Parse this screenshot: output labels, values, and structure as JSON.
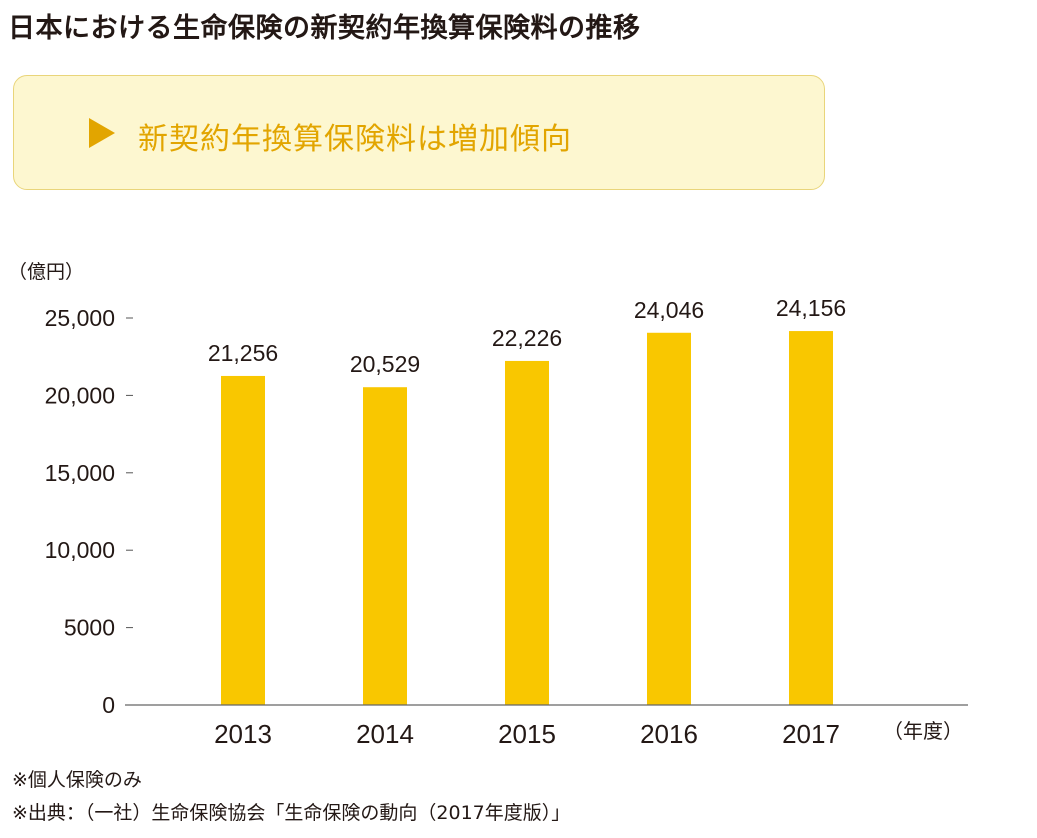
{
  "title": "日本における生命保険の新契約年換算保険料の推移",
  "highlight": {
    "arrow_icon": "triangle-right-icon",
    "text": "新契約年換算保険料は増加傾向"
  },
  "colors": {
    "bar": "#f9c700",
    "accent": "#e2a500",
    "box_background": "#fdf7d0",
    "box_border": "#e9d57a",
    "text": "#231815"
  },
  "chart_data": {
    "type": "bar",
    "y_unit": "（億円）",
    "x_unit": "（年度）",
    "categories": [
      "2013",
      "2014",
      "2015",
      "2016",
      "2017"
    ],
    "values": [
      21256,
      20529,
      22226,
      24046,
      24156
    ],
    "data_labels": [
      "21,256",
      "20,529",
      "22,226",
      "24,046",
      "24,156"
    ],
    "y_ticks": [
      0,
      5000,
      10000,
      15000,
      20000,
      25000
    ],
    "y_tick_labels": [
      "0",
      "5000",
      "10,000",
      "15,000",
      "20,000",
      "25,000"
    ],
    "ylim": [
      0,
      25000
    ],
    "grid": false,
    "legend": "none"
  },
  "notes": [
    "※個人保険のみ",
    "※出典：（一社）生命保険協会「生命保険の動向（2017年度版）」"
  ]
}
